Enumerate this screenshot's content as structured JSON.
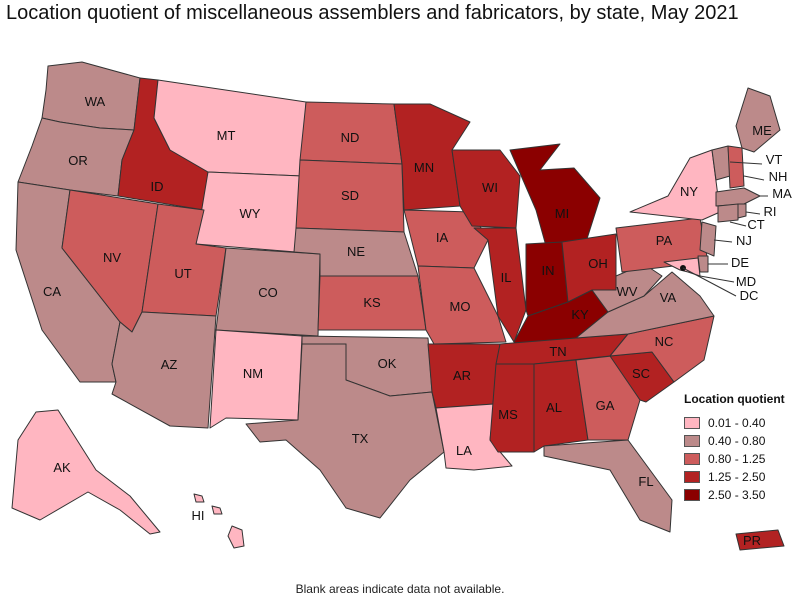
{
  "title": "Location quotient of miscellaneous assemblers and fabricators, by state, May 2021",
  "legend": {
    "title": "Location quotient",
    "bins": [
      {
        "label": "0.01 - 0.40",
        "color": "#ffb6c1"
      },
      {
        "label": "0.40 - 0.80",
        "color": "#bc8a8a"
      },
      {
        "label": "0.80 - 1.25",
        "color": "#cd5c5c"
      },
      {
        "label": "1.25 - 2.50",
        "color": "#b22222"
      },
      {
        "label": "2.50 - 3.50",
        "color": "#8b0000"
      }
    ]
  },
  "states": {
    "WA": "WA",
    "OR": "OR",
    "CA": "CA",
    "ID": "ID",
    "NV": "NV",
    "MT": "MT",
    "WY": "WY",
    "UT": "UT",
    "AZ": "AZ",
    "CO": "CO",
    "NM": "NM",
    "ND": "ND",
    "SD": "SD",
    "NE": "NE",
    "KS": "KS",
    "OK": "OK",
    "TX": "TX",
    "MN": "MN",
    "IA": "IA",
    "MO": "MO",
    "AR": "AR",
    "LA": "LA",
    "WI": "WI",
    "IL": "IL",
    "MS": "MS",
    "MI": "MI",
    "IN": "IN",
    "KY": "KY",
    "TN": "TN",
    "AL": "AL",
    "OH": "OH",
    "GA": "GA",
    "FL": "FL",
    "SC": "SC",
    "NC": "NC",
    "VA": "VA",
    "WV": "WV",
    "PA": "PA",
    "NY": "NY",
    "ME": "ME",
    "VT": "VT",
    "NH": "NH",
    "MA": "MA",
    "RI": "RI",
    "CT": "CT",
    "NJ": "NJ",
    "DE": "DE",
    "MD": "MD",
    "DC": "DC",
    "AK": "AK",
    "HI": "HI",
    "PR": "PR"
  },
  "note": "Blank areas indicate data not available."
}
